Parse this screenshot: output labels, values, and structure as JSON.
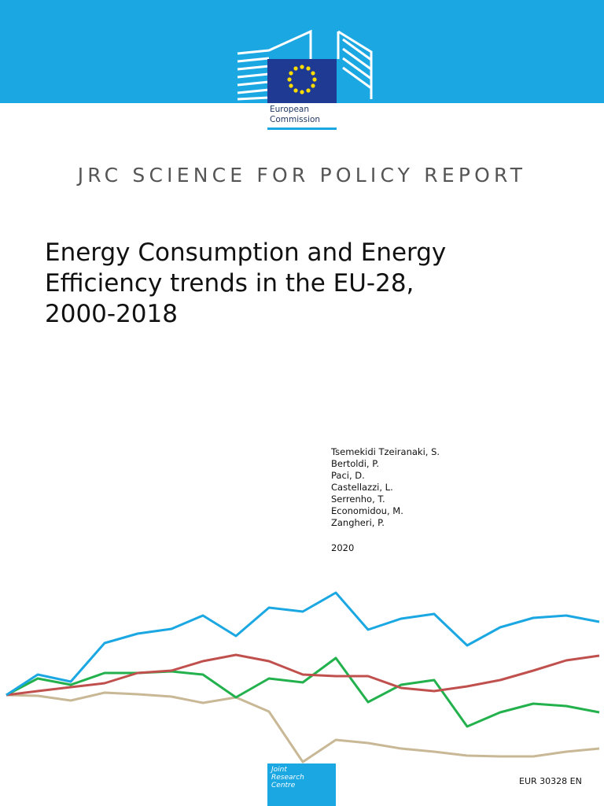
{
  "logo": {
    "line1": "European",
    "line2": "Commission"
  },
  "series_label": "JRC SCIENCE FOR POLICY REPORT",
  "title": {
    "lines": [
      "Energy Consumption and Energy",
      "Efficiency trends in the EU-28,",
      "2000-2018"
    ]
  },
  "authors": [
    "Tsemekidi Tzeiranaki, S.",
    "Bertoldi, P.",
    "Paci, D.",
    "Castellazzi, L.",
    "Serrenho, T.",
    "Economidou, M.",
    "Zangheri, P."
  ],
  "year": "2020",
  "jrc_logo": {
    "lines": [
      "Joint",
      "Research",
      "Centre"
    ]
  },
  "report_number": "EUR 30328 EN"
}
